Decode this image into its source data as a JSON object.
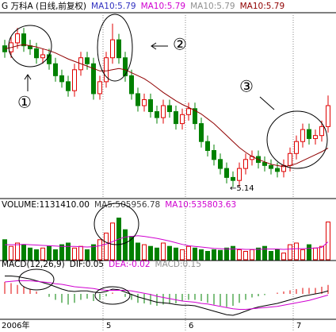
{
  "chart_data": [
    {
      "type": "candlestick",
      "legend": [
        {
          "text": "G 万科A (日线,前复权)",
          "color": "#000000"
        },
        {
          "text": "MA10:5.79",
          "color": "#3030c0"
        },
        {
          "text": "MA10:5.79",
          "color": "#d000d0"
        },
        {
          "text": "MA10:5.79",
          "color": "#909090"
        },
        {
          "text": "MA10:5.79",
          "color": "#900000"
        }
      ],
      "categories": [
        "2006年",
        null,
        null,
        null,
        null,
        null,
        null,
        null,
        null,
        null,
        null,
        null,
        null,
        null,
        null,
        null,
        "5",
        null,
        null,
        null,
        null,
        null,
        null,
        null,
        null,
        null,
        null,
        null,
        null,
        "6",
        null,
        null,
        null,
        null,
        null,
        null,
        null,
        null,
        null,
        null,
        null,
        null,
        null,
        null,
        null,
        null,
        "7",
        null,
        null,
        null,
        null,
        null
      ],
      "open": [
        7.5,
        7.4,
        7.55,
        7.7,
        7.5,
        7.45,
        7.3,
        7.35,
        7.2,
        7.0,
        6.9,
        6.75,
        7.1,
        7.3,
        7.2,
        6.7,
        6.9,
        7.3,
        7.6,
        7.3,
        7.0,
        6.7,
        6.5,
        6.6,
        6.4,
        6.3,
        6.5,
        6.4,
        6.2,
        6.35,
        6.45,
        6.2,
        5.9,
        5.75,
        5.6,
        5.45,
        5.3,
        5.25,
        5.45,
        5.6,
        5.65,
        5.55,
        5.5,
        5.45,
        5.4,
        5.5,
        5.7,
        5.9,
        6.1,
        5.95,
        6.0,
        6.15
      ],
      "high": [
        7.6,
        7.65,
        7.8,
        7.8,
        7.6,
        7.55,
        7.45,
        7.45,
        7.3,
        7.1,
        7.0,
        7.2,
        7.4,
        7.4,
        7.3,
        7.0,
        7.4,
        7.87,
        7.7,
        7.4,
        7.1,
        6.8,
        6.7,
        6.7,
        6.5,
        6.6,
        6.6,
        6.5,
        6.45,
        6.55,
        6.55,
        6.3,
        6.0,
        5.85,
        5.7,
        5.55,
        5.4,
        5.55,
        5.7,
        5.75,
        5.75,
        5.65,
        5.6,
        5.55,
        5.6,
        5.8,
        6.0,
        6.2,
        6.2,
        6.1,
        6.25,
        6.67
      ],
      "low": [
        7.3,
        7.3,
        7.45,
        7.4,
        7.35,
        7.2,
        7.2,
        7.1,
        6.9,
        6.8,
        6.65,
        6.65,
        7.0,
        7.1,
        6.6,
        6.6,
        6.8,
        7.2,
        7.2,
        6.9,
        6.6,
        6.4,
        6.4,
        6.3,
        6.2,
        6.2,
        6.3,
        6.1,
        6.1,
        6.25,
        6.1,
        5.8,
        5.65,
        5.5,
        5.35,
        5.2,
        5.14,
        5.15,
        5.35,
        5.5,
        5.45,
        5.4,
        5.35,
        5.3,
        5.3,
        5.4,
        5.6,
        5.8,
        5.85,
        5.85,
        5.9,
        6.05
      ],
      "close": [
        7.4,
        7.55,
        7.7,
        7.5,
        7.45,
        7.3,
        7.35,
        7.2,
        7.0,
        6.9,
        6.75,
        7.1,
        7.3,
        7.2,
        6.7,
        6.9,
        7.3,
        7.6,
        7.3,
        7.0,
        6.7,
        6.5,
        6.6,
        6.4,
        6.3,
        6.5,
        6.4,
        6.2,
        6.35,
        6.45,
        6.2,
        5.9,
        5.75,
        5.6,
        5.45,
        5.3,
        5.25,
        5.45,
        5.6,
        5.65,
        5.55,
        5.5,
        5.45,
        5.4,
        5.5,
        5.7,
        5.9,
        6.1,
        5.95,
        6.0,
        6.15,
        6.5
      ],
      "lines": [
        {
          "color": "#900000",
          "values": [
            7.45,
            7.47,
            7.5,
            7.52,
            7.5,
            7.48,
            7.45,
            7.42,
            7.38,
            7.33,
            7.28,
            7.24,
            7.2,
            7.16,
            7.12,
            7.08,
            7.08,
            7.1,
            7.12,
            7.1,
            7.05,
            7.0,
            6.95,
            6.88,
            6.8,
            6.72,
            6.65,
            6.58,
            6.52,
            6.47,
            6.42,
            6.36,
            6.28,
            6.2,
            6.1,
            6.0,
            5.9,
            5.8,
            5.72,
            5.65,
            5.6,
            5.56,
            5.52,
            5.5,
            5.48,
            5.5,
            5.53,
            5.58,
            5.63,
            5.68,
            5.73,
            5.79
          ]
        }
      ],
      "ylim": [
        5.0,
        8.0
      ],
      "up_color": "#e00000",
      "down_color": "#008000",
      "annotations": [
        "①",
        "②",
        "③",
        "←5.14"
      ]
    },
    {
      "type": "bar",
      "legend": [
        {
          "text": "VOLUME:1131410.00",
          "color": "#000000"
        },
        {
          "text": "MA5:505956.78",
          "color": "#404040"
        },
        {
          "text": "MA10:535803.63",
          "color": "#d000d0"
        }
      ],
      "values": [
        600000,
        400000,
        500000,
        450000,
        350000,
        300000,
        350000,
        400000,
        300000,
        450000,
        500000,
        350000,
        400000,
        300000,
        450000,
        600000,
        800000,
        1100000,
        1250000,
        900000,
        700000,
        500000,
        450000,
        400000,
        350000,
        500000,
        400000,
        350000,
        300000,
        400000,
        350000,
        300000,
        250000,
        300000,
        280000,
        350000,
        400000,
        300000,
        250000,
        300000,
        350000,
        400000,
        250000,
        300000,
        200000,
        450000,
        500000,
        300000,
        450000,
        350000,
        400000,
        1131410
      ],
      "lines": [
        {
          "color": "#d000d0",
          "values": [
            450000,
            450000,
            450000,
            460000,
            450000,
            440000,
            430000,
            420000,
            410000,
            400000,
            400000,
            400000,
            390000,
            380000,
            390000,
            420000,
            470000,
            540000,
            620000,
            680000,
            700000,
            720000,
            700000,
            670000,
            640000,
            600000,
            560000,
            510000,
            460000,
            420000,
            400000,
            380000,
            360000,
            340000,
            330000,
            320000,
            320000,
            320000,
            310000,
            310000,
            310000,
            320000,
            320000,
            320000,
            310000,
            320000,
            330000,
            330000,
            340000,
            350000,
            370000,
            535803.63
          ]
        }
      ],
      "ylim": [
        0,
        1500000
      ],
      "up_color": "#e00000",
      "down_color": "#008000"
    },
    {
      "type": "macd",
      "legend": [
        {
          "text": "MACD(12,26,9)",
          "color": "#000000"
        },
        {
          "text": "DIF:0.05",
          "color": "#000000"
        },
        {
          "text": "DEA:-0.02",
          "color": "#d000d0"
        },
        {
          "text": "MACD:0.15",
          "color": "#909090"
        }
      ],
      "values": [
        0.2,
        0.18,
        0.15,
        0.12,
        0.08,
        0.04,
        0.0,
        -0.05,
        -0.1,
        -0.15,
        -0.18,
        -0.15,
        -0.1,
        -0.08,
        -0.12,
        -0.1,
        -0.04,
        0.02,
        0.0,
        -0.05,
        -0.1,
        -0.15,
        -0.16,
        -0.18,
        -0.2,
        -0.18,
        -0.17,
        -0.16,
        -0.12,
        -0.1,
        -0.1,
        -0.12,
        -0.15,
        -0.18,
        -0.2,
        -0.22,
        -0.2,
        -0.15,
        -0.1,
        -0.06,
        -0.04,
        -0.02,
        0.0,
        0.02,
        0.04,
        0.06,
        0.08,
        0.1,
        0.1,
        0.1,
        0.12,
        0.15
      ],
      "lines": [
        {
          "color": "#000000",
          "values": [
            0.3,
            0.3,
            0.29,
            0.27,
            0.25,
            0.22,
            0.19,
            0.16,
            0.12,
            0.08,
            0.05,
            0.04,
            0.05,
            0.05,
            0.03,
            0.02,
            0.04,
            0.08,
            0.07,
            0.03,
            -0.01,
            -0.05,
            -0.08,
            -0.11,
            -0.14,
            -0.15,
            -0.16,
            -0.18,
            -0.19,
            -0.19,
            -0.2,
            -0.23,
            -0.26,
            -0.29,
            -0.32,
            -0.35,
            -0.36,
            -0.33,
            -0.29,
            -0.25,
            -0.22,
            -0.2,
            -0.18,
            -0.16,
            -0.13,
            -0.1,
            -0.07,
            -0.04,
            -0.02,
            0.0,
            0.02,
            0.05
          ]
        },
        {
          "color": "#d000d0",
          "values": [
            0.2,
            0.21,
            0.22,
            0.22,
            0.22,
            0.21,
            0.2,
            0.19,
            0.17,
            0.16,
            0.14,
            0.12,
            0.11,
            0.1,
            0.09,
            0.07,
            0.06,
            0.06,
            0.06,
            0.06,
            0.05,
            0.03,
            0.01,
            -0.01,
            -0.04,
            -0.06,
            -0.08,
            -0.1,
            -0.12,
            -0.13,
            -0.14,
            -0.16,
            -0.17,
            -0.19,
            -0.21,
            -0.23,
            -0.25,
            -0.26,
            -0.26,
            -0.25,
            -0.24,
            -0.23,
            -0.22,
            -0.21,
            -0.19,
            -0.17,
            -0.15,
            -0.13,
            -0.11,
            -0.08,
            -0.05,
            -0.02
          ]
        }
      ],
      "ylim": [
        -0.4,
        0.4
      ],
      "up_color": "#e00000",
      "down_color": "#008000"
    }
  ]
}
